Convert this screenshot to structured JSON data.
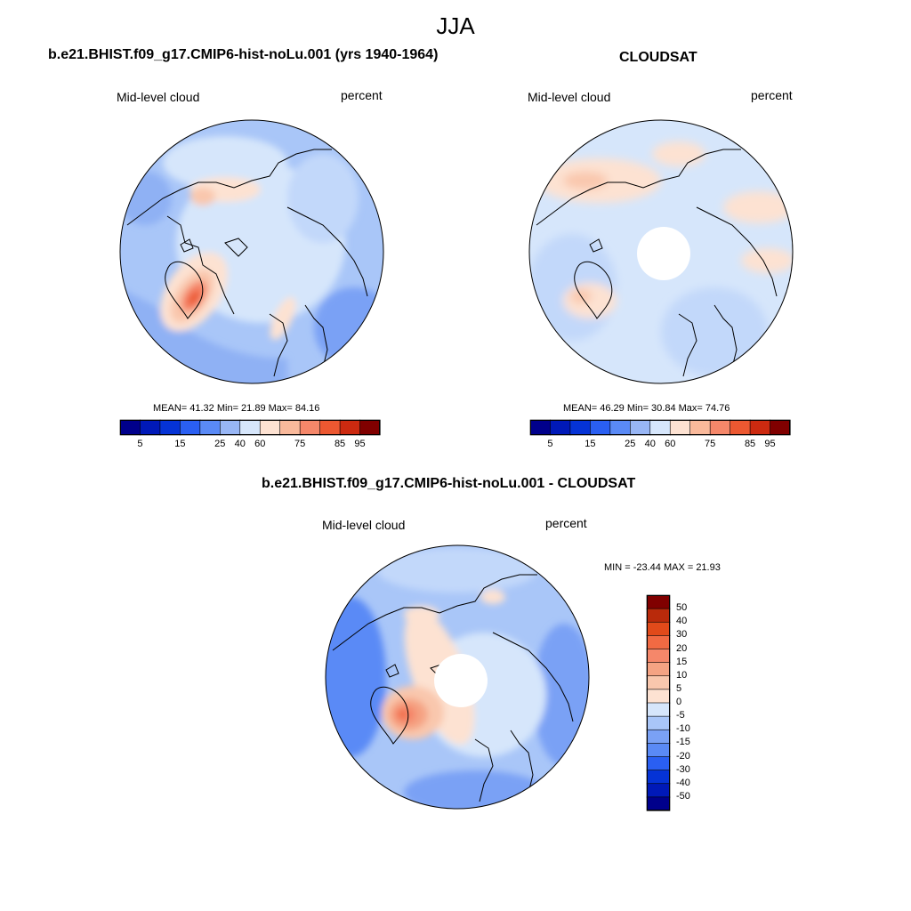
{
  "season": "JJA",
  "colors": {
    "palette13": [
      "#00008b",
      "#0019b8",
      "#0533d6",
      "#2a5ff2",
      "#5a8af6",
      "#98b6f5",
      "#d6e6fb",
      "#fde2d2",
      "#f9b99b",
      "#f5876a",
      "#ec5831",
      "#cc2a10",
      "#800000"
    ],
    "palette16": [
      "#00008b",
      "#0019b8",
      "#0533d6",
      "#2a5ff2",
      "#5a8af6",
      "#7aa1f5",
      "#a9c6f8",
      "#d6e6fb",
      "#fde2d2",
      "#f9c7ad",
      "#f5a383",
      "#f5876a",
      "#f16a43",
      "#e14a1a",
      "#b92a0b",
      "#800000"
    ],
    "coast": "#000000"
  },
  "panels": [
    {
      "title": "b.e21.BHIST.f09_g17.CMIP6-hist-noLu.001 (yrs 1940-1964)",
      "left_label": "Mid-level cloud",
      "right_label": "percent",
      "stats": "MEAN=  41.32  Min=  21.89  Max=  84.16",
      "colorbar_labels": [
        "5",
        "15",
        "25",
        "40",
        "60",
        "75",
        "85",
        "95"
      ],
      "pole_hole": false
    },
    {
      "title": "CLOUDSAT",
      "left_label": "Mid-level cloud",
      "right_label": "percent",
      "stats": "MEAN=  46.29  Min=  30.84  Max=  74.76",
      "colorbar_labels": [
        "5",
        "15",
        "25",
        "40",
        "60",
        "75",
        "85",
        "95"
      ],
      "pole_hole": true
    }
  ],
  "diff_panel": {
    "title": "b.e21.BHIST.f09_g17.CMIP6-hist-noLu.001 - CLOUDSAT",
    "left_label": "Mid-level cloud",
    "right_label": "percent",
    "stats": "MIN = -23.44 MAX =  21.93",
    "colorbar_labels": [
      "50",
      "40",
      "30",
      "20",
      "15",
      "10",
      "5",
      "0",
      "-5",
      "-10",
      "-15",
      "-20",
      "-30",
      "-40",
      "-50"
    ],
    "pole_hole": true
  }
}
